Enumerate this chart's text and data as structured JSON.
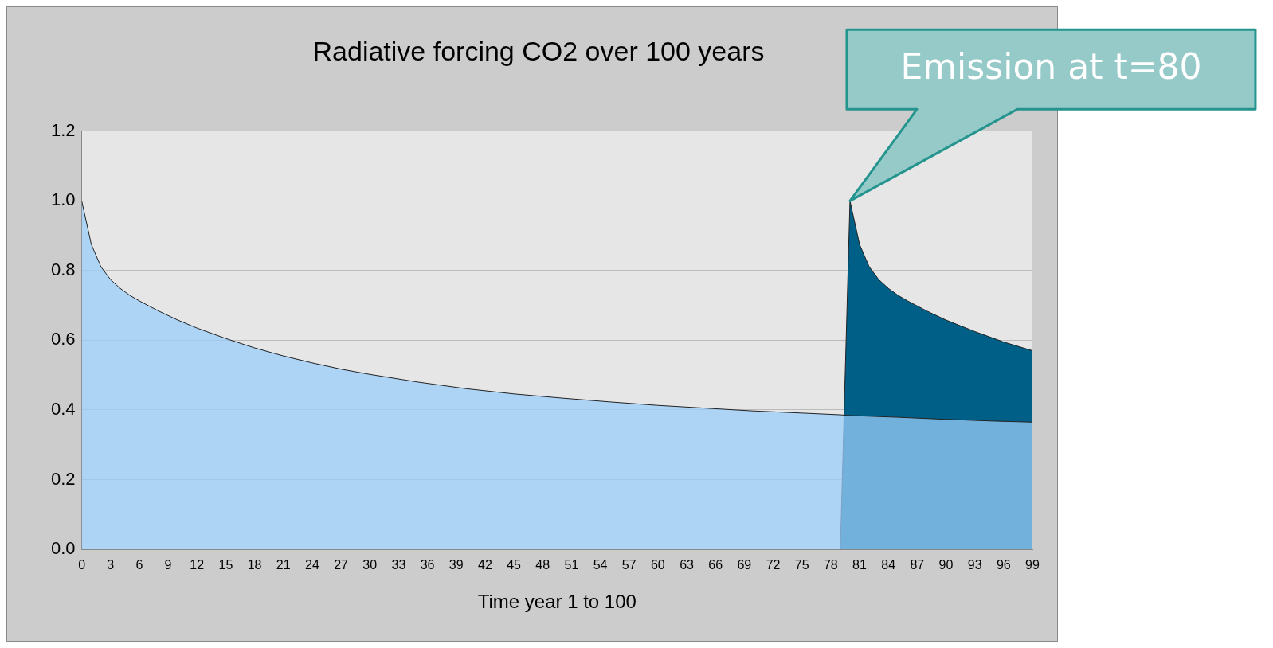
{
  "chart_data": {
    "type": "area",
    "title": "Radiative forcing CO2 over 100 years",
    "xlabel": "Time year 1 to 100",
    "xlim": [
      0,
      99
    ],
    "xticks": [
      0,
      3,
      6,
      9,
      12,
      15,
      18,
      21,
      24,
      27,
      30,
      33,
      36,
      39,
      42,
      45,
      48,
      51,
      54,
      57,
      60,
      63,
      66,
      69,
      72,
      75,
      78,
      81,
      84,
      87,
      90,
      93,
      96,
      99
    ],
    "ylim": [
      0,
      1.2
    ],
    "yticks": [
      {
        "value": 0,
        "label": "0.0"
      },
      {
        "value": 0.2,
        "label": "0.2"
      },
      {
        "value": 0.4,
        "label": "0.4"
      },
      {
        "value": 0.6,
        "label": "0.6"
      },
      {
        "value": 0.8,
        "label": "0.8"
      },
      {
        "value": 1,
        "label": "1.0"
      },
      {
        "value": 1.2,
        "label": "1.2"
      }
    ],
    "grid": "y",
    "legend": false,
    "series": [
      {
        "color": "#005f87",
        "x": [
          79,
          80,
          81,
          82,
          83,
          84,
          85,
          86,
          88,
          90,
          93,
          96,
          99
        ],
        "values": [
          0,
          1.0,
          0.875,
          0.811,
          0.774,
          0.749,
          0.729,
          0.713,
          0.684,
          0.658,
          0.625,
          0.595,
          0.57
        ]
      },
      {
        "color": "#99ccfa",
        "x": [
          0,
          1,
          2,
          3,
          4,
          5,
          6,
          8,
          10,
          12,
          15,
          18,
          21,
          24,
          27,
          30,
          35,
          40,
          45,
          50,
          55,
          60,
          65,
          70,
          75,
          79,
          80,
          85,
          90,
          95,
          99
        ],
        "values": [
          1.0,
          0.875,
          0.811,
          0.774,
          0.749,
          0.729,
          0.713,
          0.684,
          0.658,
          0.635,
          0.605,
          0.578,
          0.555,
          0.535,
          0.517,
          0.502,
          0.48,
          0.461,
          0.446,
          0.434,
          0.423,
          0.413,
          0.405,
          0.397,
          0.391,
          0.386,
          0.384,
          0.379,
          0.373,
          0.368,
          0.365
        ]
      }
    ],
    "annotations": [
      "Emission at t=80"
    ]
  }
}
